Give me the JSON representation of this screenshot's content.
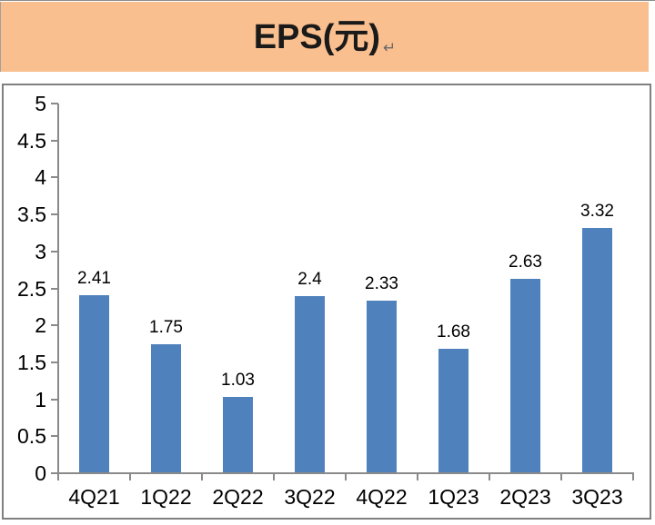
{
  "title": {
    "text": "EPS(元)",
    "return_mark": "↵"
  },
  "colors": {
    "band_bg": "#FABF8F",
    "bar_fill": "#4F81BD",
    "box_border": "#808080",
    "axis_color": "#8A8A8A",
    "text_color": "#000000"
  },
  "chart_data": {
    "type": "bar",
    "title": "EPS(元)",
    "categories": [
      "4Q21",
      "1Q22",
      "2Q22",
      "3Q22",
      "4Q22",
      "1Q23",
      "2Q23",
      "3Q23"
    ],
    "values": [
      2.41,
      1.75,
      1.03,
      2.4,
      2.33,
      1.68,
      2.63,
      3.32
    ],
    "value_labels": [
      "2.41",
      "1.75",
      "1.03",
      "2.4",
      "2.33",
      "1.68",
      "2.63",
      "3.32"
    ],
    "xlabel": "",
    "ylabel": "",
    "ylim": [
      0,
      5
    ],
    "ytick_step": 0.5,
    "ytick_labels": [
      "0",
      "0.5",
      "1",
      "1.5",
      "2",
      "2.5",
      "3",
      "3.5",
      "4",
      "4.5",
      "5"
    ],
    "grid": false,
    "legend": "none",
    "data_labels": true
  }
}
